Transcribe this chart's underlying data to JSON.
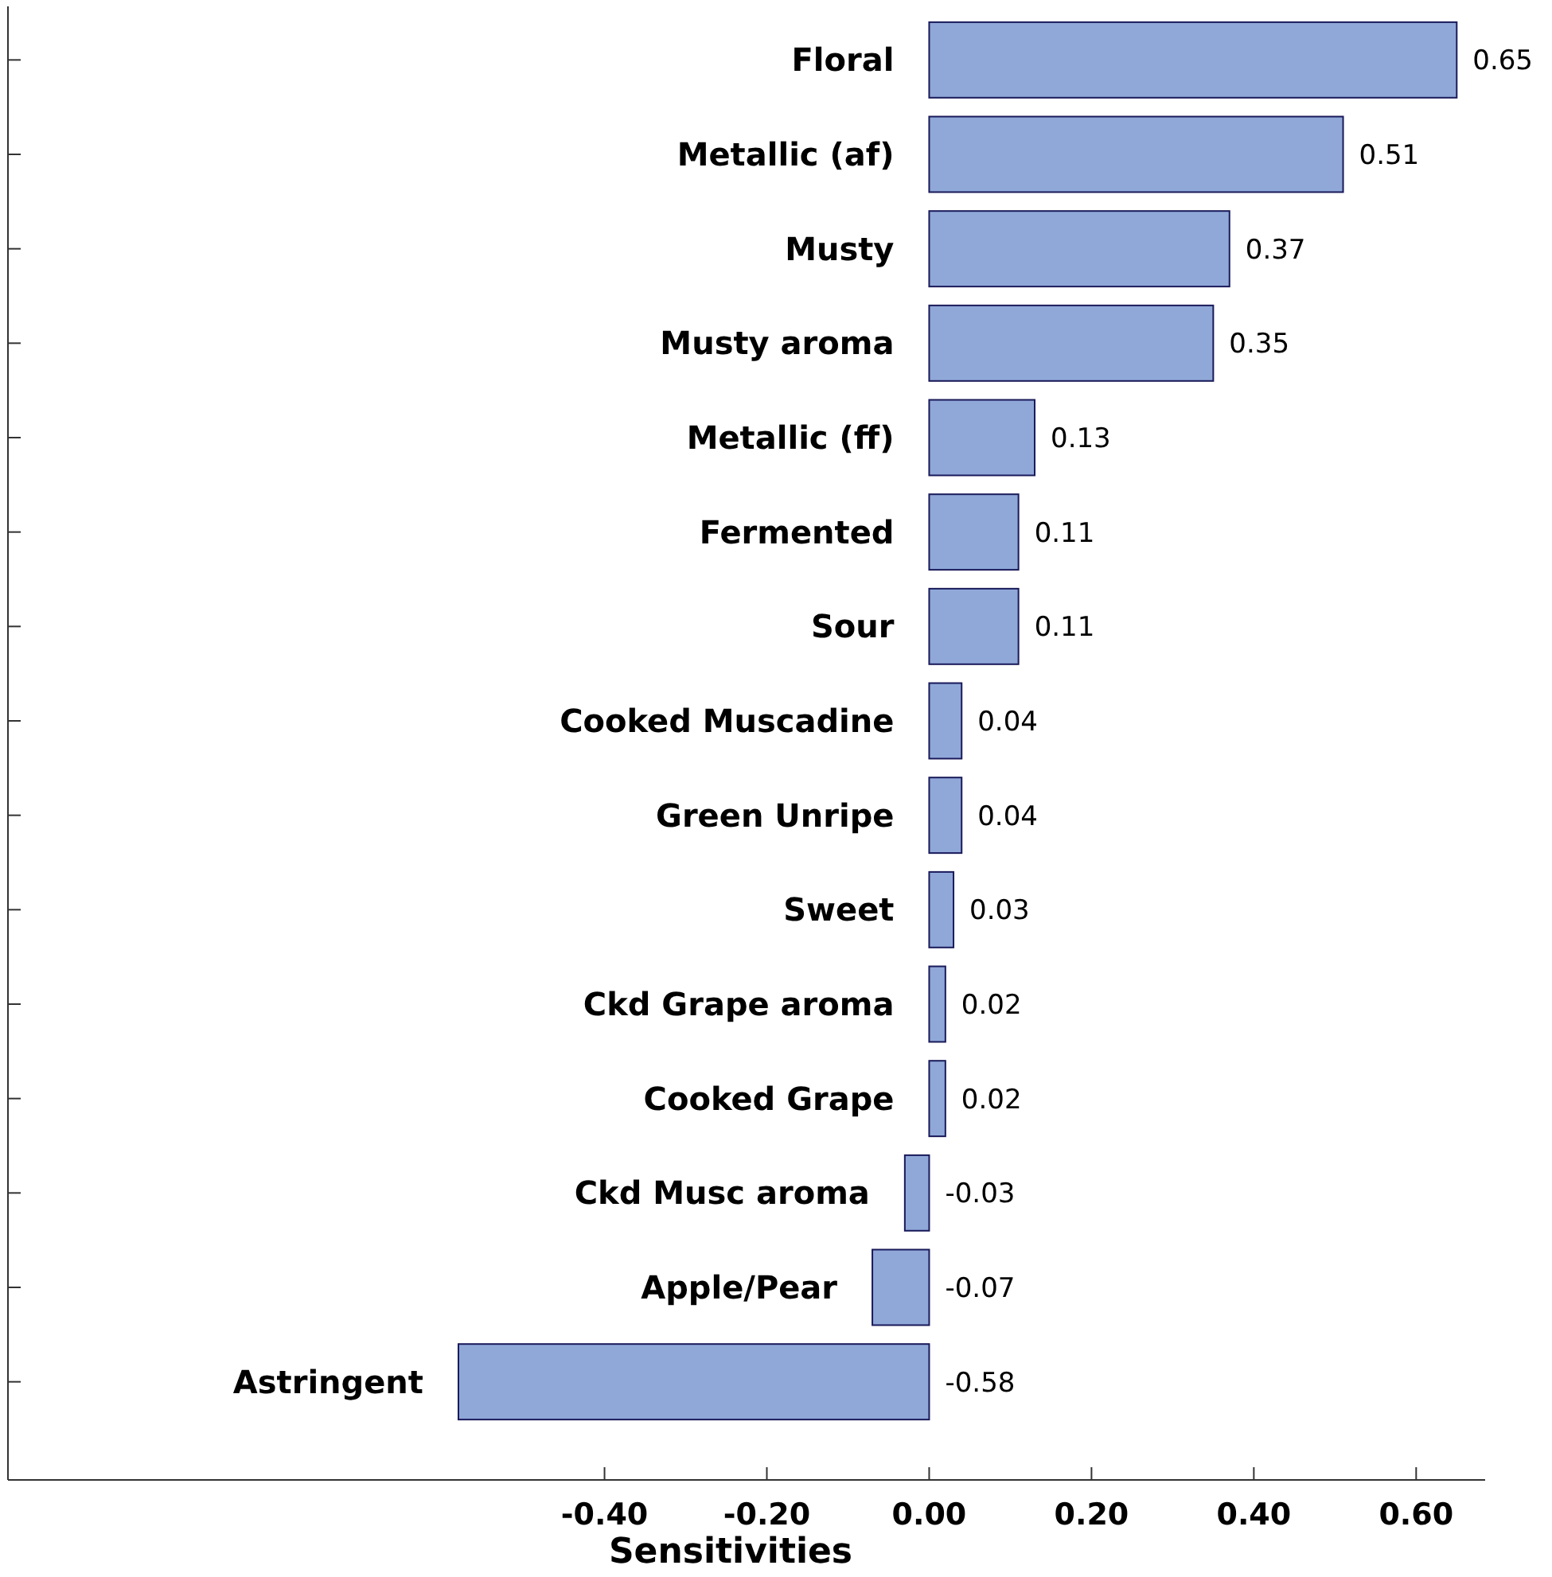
{
  "chart_data": {
    "type": "bar",
    "orientation": "horizontal",
    "xlabel": "Sensitivities",
    "categories": [
      "Floral",
      "Metallic (af)",
      "Musty",
      "Musty aroma",
      "Metallic (ff)",
      "Fermented",
      "Sour",
      "Cooked Muscadine",
      "Green Unripe",
      "Sweet",
      "Ckd Grape aroma",
      "Cooked Grape",
      "Ckd Musc aroma",
      "Apple/Pear",
      "Astringent"
    ],
    "values": [
      0.65,
      0.51,
      0.37,
      0.35,
      0.13,
      0.11,
      0.11,
      0.04,
      0.04,
      0.03,
      0.02,
      0.02,
      -0.03,
      -0.07,
      -0.58
    ],
    "color": "#8fa8d8",
    "data_labels": true,
    "grid": false,
    "xlim": [
      -1.135,
      0.685
    ],
    "xticks": [
      {
        "value": -0.4,
        "label": "-0.40"
      },
      {
        "value": -0.2,
        "label": "-0.20"
      },
      {
        "value": 0,
        "label": "0.00"
      },
      {
        "value": 0.2,
        "label": "0.20"
      },
      {
        "value": 0.4,
        "label": "0.40"
      },
      {
        "value": 0.6,
        "label": "0.60"
      }
    ]
  }
}
